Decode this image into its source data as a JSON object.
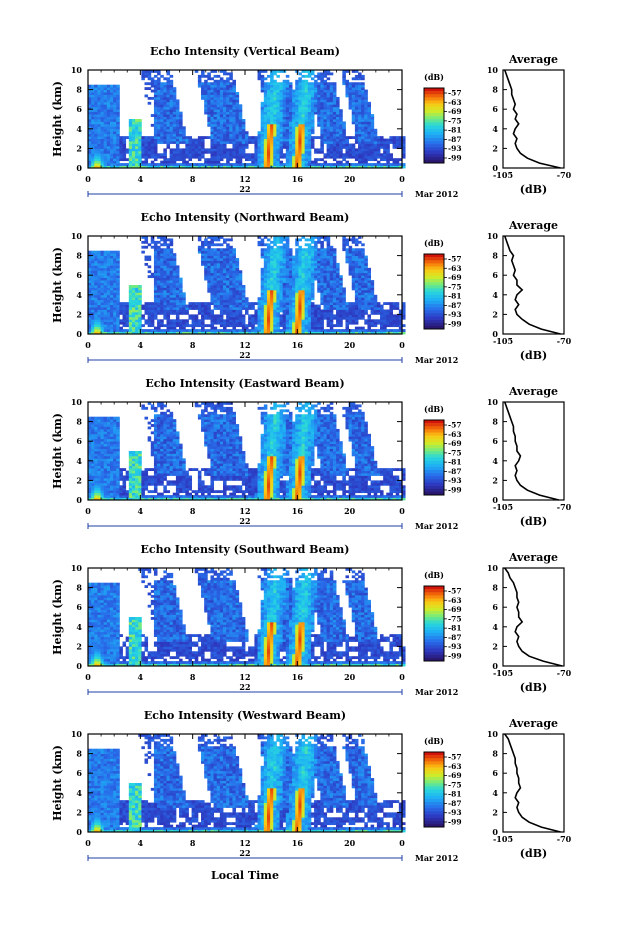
{
  "page": {
    "xlabel": "Local Time",
    "month_label": "Mar 2012"
  },
  "chart_data": [
    {
      "type": "heatmap",
      "title": "Echo Intensity (Vertical Beam)",
      "ylabel": "Height (km)",
      "xticks": [
        "0",
        "4",
        "8",
        "12",
        "16",
        "20",
        "0"
      ],
      "yticks": [
        "0",
        "2",
        "4",
        "6",
        "8",
        "10"
      ],
      "xlim": [
        0,
        24
      ],
      "ylim": [
        0,
        10
      ],
      "day_label": "22",
      "colorbar": {
        "unit": "(dB)",
        "labels": [
          "-57",
          "-63",
          "-69",
          "-75",
          "-81",
          "-87",
          "-93",
          "-99"
        ]
      },
      "average": {
        "title": "Average",
        "xlabel": "(dB)",
        "xticks": [
          "-105",
          "-70"
        ],
        "yticks": [
          "0",
          "2",
          "4",
          "6",
          "8",
          "10"
        ],
        "xlim": [
          -105,
          -70
        ],
        "heights": [
          0,
          0.5,
          1,
          1.5,
          2,
          2.5,
          3,
          3.5,
          4,
          4.5,
          5,
          5.5,
          6,
          6.5,
          7,
          7.5,
          8,
          8.5,
          9,
          9.5,
          10
        ],
        "values": [
          -72,
          -84,
          -91,
          -95,
          -97,
          -98,
          -97,
          -99,
          -98,
          -96,
          -98,
          -97,
          -99,
          -98,
          -99,
          -100,
          -100,
          -101,
          -102,
          -103,
          -104
        ]
      }
    },
    {
      "type": "heatmap",
      "title": "Echo Intensity (Northward Beam)",
      "ylabel": "Height (km)",
      "xticks": [
        "0",
        "4",
        "8",
        "12",
        "16",
        "20",
        "0"
      ],
      "yticks": [
        "0",
        "2",
        "4",
        "6",
        "8",
        "10"
      ],
      "xlim": [
        0,
        24
      ],
      "ylim": [
        0,
        10
      ],
      "day_label": "22",
      "colorbar": {
        "unit": "(dB)",
        "labels": [
          "-57",
          "-63",
          "-69",
          "-75",
          "-81",
          "-87",
          "-93",
          "-99"
        ]
      },
      "average": {
        "title": "Average",
        "xlabel": "(dB)",
        "xticks": [
          "-105",
          "-70"
        ],
        "yticks": [
          "0",
          "2",
          "4",
          "6",
          "8",
          "10"
        ],
        "xlim": [
          -105,
          -70
        ],
        "heights": [
          0,
          0.5,
          1,
          1.5,
          2,
          2.5,
          3,
          3.5,
          4,
          4.5,
          5,
          5.5,
          6,
          6.5,
          7,
          7.5,
          8,
          8.5,
          9,
          9.5,
          10
        ],
        "values": [
          -72,
          -83,
          -90,
          -94,
          -97,
          -98,
          -96,
          -98,
          -97,
          -94,
          -97,
          -97,
          -99,
          -98,
          -99,
          -100,
          -99,
          -101,
          -102,
          -103,
          -104
        ]
      }
    },
    {
      "type": "heatmap",
      "title": "Echo Intensity (Eastward Beam)",
      "ylabel": "Height (km)",
      "xticks": [
        "0",
        "4",
        "8",
        "12",
        "16",
        "20",
        "0"
      ],
      "yticks": [
        "0",
        "2",
        "4",
        "6",
        "8",
        "10"
      ],
      "xlim": [
        0,
        24
      ],
      "ylim": [
        0,
        10
      ],
      "day_label": "22",
      "colorbar": {
        "unit": "(dB)",
        "labels": [
          "-57",
          "-63",
          "-69",
          "-75",
          "-81",
          "-87",
          "-93",
          "-99"
        ]
      },
      "average": {
        "title": "Average",
        "xlabel": "(dB)",
        "xticks": [
          "-105",
          "-70"
        ],
        "yticks": [
          "0",
          "2",
          "4",
          "6",
          "8",
          "10"
        ],
        "xlim": [
          -105,
          -70
        ],
        "heights": [
          0,
          0.5,
          1,
          1.5,
          2,
          2.5,
          3,
          3.5,
          4,
          4.5,
          5,
          5.5,
          6,
          6.5,
          7,
          7.5,
          8,
          8.5,
          9,
          9.5,
          10
        ],
        "values": [
          -73,
          -84,
          -91,
          -95,
          -97,
          -98,
          -97,
          -98,
          -96,
          -95,
          -97,
          -97,
          -98,
          -98,
          -99,
          -99,
          -100,
          -101,
          -102,
          -103,
          -104
        ]
      }
    },
    {
      "type": "heatmap",
      "title": "Echo Intensity (Southward Beam)",
      "ylabel": "Height (km)",
      "xticks": [
        "0",
        "4",
        "8",
        "12",
        "16",
        "20",
        "0"
      ],
      "yticks": [
        "0",
        "2",
        "4",
        "6",
        "8",
        "10"
      ],
      "xlim": [
        0,
        24
      ],
      "ylim": [
        0,
        10
      ],
      "day_label": "22",
      "colorbar": {
        "unit": "(dB)",
        "labels": [
          "-57",
          "-63",
          "-69",
          "-75",
          "-81",
          "-87",
          "-93",
          "-99"
        ]
      },
      "average": {
        "title": "Average",
        "xlabel": "(dB)",
        "xticks": [
          "-105",
          "-70"
        ],
        "yticks": [
          "0",
          "2",
          "4",
          "6",
          "8",
          "10"
        ],
        "xlim": [
          -105,
          -70
        ],
        "heights": [
          0,
          0.5,
          1,
          1.5,
          2,
          2.5,
          3,
          3.5,
          4,
          4.5,
          5,
          5.5,
          6,
          6.5,
          7,
          7.5,
          8,
          8.5,
          9,
          9.5,
          10
        ],
        "values": [
          -71,
          -82,
          -90,
          -94,
          -96,
          -97,
          -96,
          -98,
          -97,
          -94,
          -96,
          -96,
          -97,
          -96,
          -97,
          -97,
          -98,
          -99,
          -101,
          -102,
          -104
        ]
      }
    },
    {
      "type": "heatmap",
      "title": "Echo Intensity (Westward Beam)",
      "ylabel": "Height (km)",
      "xticks": [
        "0",
        "4",
        "8",
        "12",
        "16",
        "20",
        "0"
      ],
      "yticks": [
        "0",
        "2",
        "4",
        "6",
        "8",
        "10"
      ],
      "xlim": [
        0,
        24
      ],
      "ylim": [
        0,
        10
      ],
      "day_label": "22",
      "colorbar": {
        "unit": "(dB)",
        "labels": [
          "-57",
          "-63",
          "-69",
          "-75",
          "-81",
          "-87",
          "-93",
          "-99"
        ]
      },
      "average": {
        "title": "Average",
        "xlabel": "(dB)",
        "xticks": [
          "-105",
          "-70"
        ],
        "yticks": [
          "0",
          "2",
          "4",
          "6",
          "8",
          "10"
        ],
        "xlim": [
          -105,
          -70
        ],
        "heights": [
          0,
          0.5,
          1,
          1.5,
          2,
          2.5,
          3,
          3.5,
          4,
          4.5,
          5,
          5.5,
          6,
          6.5,
          7,
          7.5,
          8,
          8.5,
          9,
          9.5,
          10
        ],
        "values": [
          -72,
          -83,
          -90,
          -94,
          -96,
          -97,
          -96,
          -98,
          -97,
          -95,
          -96,
          -96,
          -97,
          -97,
          -98,
          -98,
          -99,
          -100,
          -101,
          -102,
          -104
        ]
      }
    }
  ]
}
